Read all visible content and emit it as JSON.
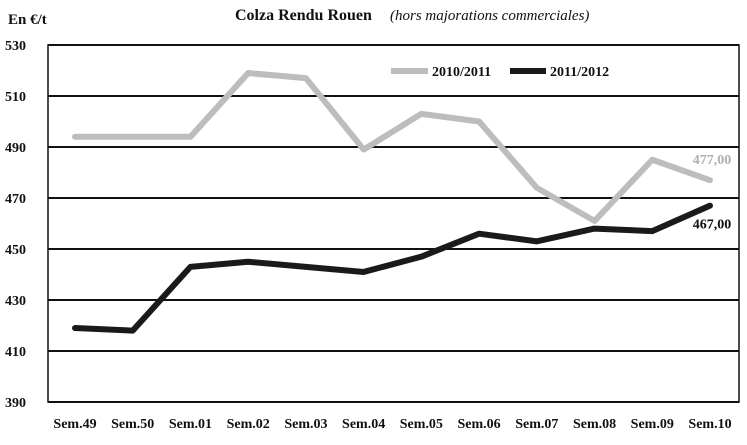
{
  "chart_data": {
    "type": "line",
    "title": "Colza Rendu Rouen",
    "subtitle": "(hors majorations commerciales)",
    "ylabel": "En €/t",
    "xlabel": "",
    "ylim": [
      390,
      530
    ],
    "yticks": [
      390,
      410,
      430,
      450,
      470,
      490,
      510,
      530
    ],
    "categories": [
      "Sem.49",
      "Sem.50",
      "Sem.01",
      "Sem.02",
      "Sem.03",
      "Sem.04",
      "Sem.05",
      "Sem.06",
      "Sem.07",
      "Sem.08",
      "Sem.09",
      "Sem.10"
    ],
    "grid": true,
    "legend_position": "top-right",
    "series": [
      {
        "name": "2010/2011",
        "color": "#bdbdbd",
        "values": [
          494,
          494,
          494,
          519,
          517,
          489,
          503,
          500,
          474,
          461,
          485,
          477
        ],
        "end_label": "477,00"
      },
      {
        "name": "2011/2012",
        "color": "#1a1a1a",
        "values": [
          419,
          418,
          443,
          445,
          443,
          441,
          447,
          456,
          453,
          458,
          457,
          467
        ],
        "end_label": "467,00"
      }
    ]
  }
}
